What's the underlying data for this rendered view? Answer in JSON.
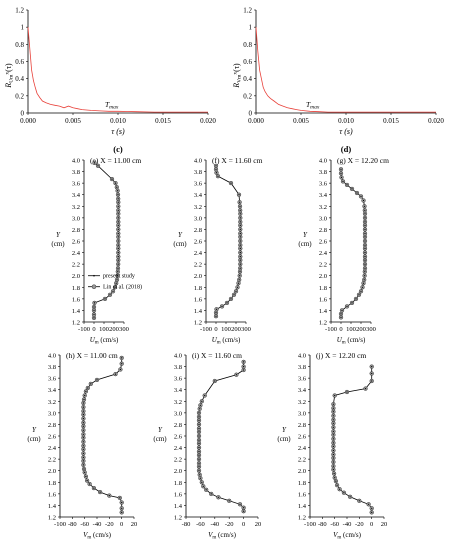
{
  "chart_data": [
    {
      "id": "c",
      "type": "line",
      "panel_label": "(c)",
      "ylabel_main": "R",
      "ylabel_sub": "Um",
      "ylabel_sup": "x",
      "ylabel_tail": "(τ)",
      "xlabel": "τ (s)",
      "xlim": [
        0,
        0.02
      ],
      "ylim": [
        0,
        1.2
      ],
      "xticks": [
        "0.000",
        "0.005",
        "0.010",
        "0.015",
        "0.020"
      ],
      "yticks": [
        "0",
        "0.2",
        "0.4",
        "0.6",
        "0.8",
        "1",
        "1.2"
      ],
      "annotation": "T",
      "annotation_sub": "max",
      "annotation_x": 0.009,
      "line_color": "#e8413a",
      "x": [
        0,
        0.0002,
        0.0004,
        0.0006,
        0.0008,
        0.001,
        0.0013,
        0.0016,
        0.002,
        0.0025,
        0.003,
        0.0035,
        0.004,
        0.0045,
        0.005,
        0.0055,
        0.006,
        0.007,
        0.008,
        0.009,
        0.01,
        0.012,
        0.014,
        0.016,
        0.018,
        0.02
      ],
      "y": [
        1.0,
        0.75,
        0.5,
        0.38,
        0.3,
        0.23,
        0.18,
        0.14,
        0.12,
        0.1,
        0.09,
        0.08,
        0.06,
        0.08,
        0.06,
        0.05,
        0.04,
        0.03,
        0.025,
        0.02,
        0.02,
        0.015,
        0.01,
        0.01,
        0.01,
        0.01
      ]
    },
    {
      "id": "d",
      "type": "line",
      "panel_label": "(d)",
      "ylabel_main": "R",
      "ylabel_sub": "Vm",
      "ylabel_sup": "x",
      "ylabel_tail": "(τ)",
      "xlabel": "τ (s)",
      "xlim": [
        0,
        0.02
      ],
      "ylim": [
        0,
        1.2
      ],
      "xticks": [
        "0.000",
        "0.005",
        "0.010",
        "0.015",
        "0.020"
      ],
      "yticks": [
        "0",
        "0.2",
        "0.4",
        "0.6",
        "0.8",
        "1",
        "1.2"
      ],
      "annotation": "T",
      "annotation_sub": "max",
      "annotation_x": 0.006,
      "line_color": "#e8413a",
      "x": [
        0,
        0.0002,
        0.0004,
        0.0006,
        0.0008,
        0.001,
        0.0013,
        0.0016,
        0.002,
        0.0025,
        0.003,
        0.0035,
        0.004,
        0.0045,
        0.005,
        0.006,
        0.007,
        0.008,
        0.009,
        0.01,
        0.012,
        0.014,
        0.016,
        0.018,
        0.02
      ],
      "y": [
        1.0,
        0.72,
        0.5,
        0.4,
        0.3,
        0.25,
        0.2,
        0.17,
        0.14,
        0.1,
        0.08,
        0.06,
        0.05,
        0.04,
        0.03,
        0.02,
        0.015,
        0.01,
        0.01,
        0.01,
        0.01,
        0.01,
        0.01,
        0.01,
        0.01
      ]
    },
    {
      "id": "e",
      "type": "line",
      "title": "(e) X = 11.00 cm",
      "xlabel_main": "U",
      "xlabel_sub": "m",
      "xlabel_unit": "(cm/s)",
      "ylabel": "Y",
      "ylabel_unit": "(cm)",
      "xlim": [
        -100,
        300
      ],
      "ylim": [
        1.2,
        4.0
      ],
      "xticks": [
        "-100",
        "0",
        "100",
        "200",
        "300"
      ],
      "yticks": [
        "1.2",
        "1.4",
        "1.6",
        "1.8",
        "2.0",
        "2.2",
        "2.4",
        "2.6",
        "2.8",
        "3.0",
        "3.2",
        "3.4",
        "3.6",
        "3.8",
        "4.0"
      ],
      "legend": {
        "present": "present study",
        "lin": "Lin et al. (2018)"
      },
      "series": [
        {
          "x": [
            0,
            0,
            0,
            0,
            5,
            110,
            160,
            190,
            210,
            222,
            230,
            235,
            238,
            240,
            242,
            243,
            243,
            243,
            243,
            243,
            243,
            243,
            243,
            243,
            243,
            243,
            243,
            243,
            243,
            243,
            243,
            242,
            240,
            236,
            228,
            215,
            180,
            40,
            5
          ],
          "y": [
            1.27,
            1.33,
            1.4,
            1.46,
            1.53,
            1.6,
            1.67,
            1.73,
            1.8,
            1.87,
            1.93,
            2.0,
            2.07,
            2.13,
            2.2,
            2.27,
            2.33,
            2.4,
            2.47,
            2.53,
            2.6,
            2.67,
            2.73,
            2.8,
            2.87,
            2.93,
            3.0,
            3.07,
            3.13,
            3.2,
            3.27,
            3.33,
            3.4,
            3.47,
            3.53,
            3.6,
            3.67,
            3.9,
            3.95
          ]
        }
      ]
    },
    {
      "id": "f",
      "type": "line",
      "title": "(f) X = 11.60 cm",
      "xlabel_main": "U",
      "xlabel_sub": "m",
      "xlabel_unit": "(cm/s)",
      "ylabel": "Y",
      "ylabel_unit": "(cm)",
      "xlim": [
        -100,
        300
      ],
      "ylim": [
        1.2,
        4.0
      ],
      "xticks": [
        "-100",
        "0",
        "100",
        "200",
        "300"
      ],
      "yticks": [
        "1.2",
        "1.4",
        "1.6",
        "1.8",
        "2.0",
        "2.2",
        "2.4",
        "2.6",
        "2.8",
        "3.0",
        "3.2",
        "3.4",
        "3.6",
        "3.8",
        "4.0"
      ],
      "series": [
        {
          "x": [
            0,
            0,
            5,
            60,
            110,
            150,
            180,
            200,
            215,
            225,
            232,
            237,
            240,
            242,
            243,
            243,
            243,
            243,
            243,
            243,
            243,
            243,
            243,
            243,
            243,
            243,
            243,
            243,
            242,
            240,
            236,
            230,
            150,
            20,
            5,
            0,
            0
          ],
          "y": [
            1.3,
            1.36,
            1.42,
            1.47,
            1.53,
            1.6,
            1.67,
            1.73,
            1.8,
            1.87,
            1.93,
            2.0,
            2.07,
            2.13,
            2.2,
            2.27,
            2.33,
            2.4,
            2.47,
            2.53,
            2.6,
            2.67,
            2.73,
            2.8,
            2.87,
            2.93,
            3.0,
            3.07,
            3.13,
            3.2,
            3.27,
            3.4,
            3.6,
            3.72,
            3.78,
            3.84,
            3.9
          ]
        }
      ]
    },
    {
      "id": "g",
      "type": "line",
      "title": "(g) X = 12.20 cm",
      "xlabel_main": "U",
      "xlabel_sub": "m",
      "xlabel_unit": "(cm/s)",
      "ylabel": "Y",
      "ylabel_unit": "(cm)",
      "xlim": [
        -100,
        300
      ],
      "ylim": [
        1.2,
        4.0
      ],
      "xticks": [
        "-100",
        "0",
        "100",
        "200",
        "300"
      ],
      "yticks": [
        "1.2",
        "1.4",
        "1.6",
        "1.8",
        "2.0",
        "2.2",
        "2.4",
        "2.6",
        "2.8",
        "3.0",
        "3.2",
        "3.4",
        "3.6",
        "3.8",
        "4.0"
      ],
      "series": [
        {
          "x": [
            0,
            0,
            10,
            60,
            110,
            150,
            180,
            200,
            215,
            225,
            232,
            236,
            238,
            240,
            240,
            240,
            240,
            240,
            240,
            240,
            240,
            240,
            240,
            240,
            240,
            240,
            240,
            240,
            238,
            235,
            225,
            200,
            160,
            110,
            60,
            20,
            5,
            0,
            0
          ],
          "y": [
            1.28,
            1.34,
            1.4,
            1.47,
            1.53,
            1.6,
            1.67,
            1.73,
            1.8,
            1.87,
            1.93,
            2.0,
            2.07,
            2.13,
            2.2,
            2.27,
            2.33,
            2.4,
            2.47,
            2.53,
            2.6,
            2.67,
            2.73,
            2.8,
            2.87,
            2.93,
            3.0,
            3.07,
            3.13,
            3.2,
            3.3,
            3.37,
            3.43,
            3.5,
            3.57,
            3.63,
            3.7,
            3.77,
            3.84
          ]
        }
      ]
    },
    {
      "id": "h",
      "type": "line",
      "title": "(h) X = 11.00 cm",
      "xlabel_main": "V",
      "xlabel_sub": "m",
      "xlabel_unit": "(cm/s)",
      "ylabel": "Y",
      "ylabel_unit": "(cm)",
      "xlim": [
        -100,
        20
      ],
      "ylim": [
        1.2,
        4.0
      ],
      "xticks": [
        "-100",
        "-80",
        "-60",
        "-40",
        "-20",
        "0",
        "20"
      ],
      "yticks": [
        "1.2",
        "1.4",
        "1.6",
        "1.8",
        "2.0",
        "2.2",
        "2.4",
        "2.6",
        "2.8",
        "3.0",
        "3.2",
        "3.4",
        "3.6",
        "3.8",
        "4.0"
      ],
      "series": [
        {
          "x": [
            0,
            0,
            0,
            -3,
            -20,
            -35,
            -45,
            -52,
            -56,
            -58,
            -60,
            -61,
            -62,
            -62,
            -62,
            -62,
            -62,
            -62,
            -62,
            -62,
            -62,
            -62,
            -62,
            -62,
            -62,
            -62,
            -62,
            -62,
            -62,
            -61,
            -60,
            -58,
            -55,
            -50,
            -40,
            -10,
            -2,
            0,
            0
          ],
          "y": [
            1.28,
            1.35,
            1.45,
            1.53,
            1.57,
            1.63,
            1.7,
            1.77,
            1.83,
            1.9,
            1.97,
            2.03,
            2.1,
            2.17,
            2.23,
            2.3,
            2.37,
            2.43,
            2.5,
            2.57,
            2.63,
            2.7,
            2.77,
            2.83,
            2.9,
            2.97,
            3.03,
            3.1,
            3.17,
            3.23,
            3.3,
            3.37,
            3.43,
            3.5,
            3.57,
            3.67,
            3.75,
            3.85,
            3.95
          ]
        }
      ]
    },
    {
      "id": "i",
      "type": "line",
      "title": "(i) X = 11.60 cm",
      "xlabel_main": "V",
      "xlabel_sub": "m",
      "xlabel_unit": "(cm/s)",
      "ylabel": "Y",
      "ylabel_unit": "(cm)",
      "xlim": [
        -80,
        20
      ],
      "ylim": [
        1.2,
        4.0
      ],
      "xticks": [
        "-80",
        "-60",
        "-40",
        "-20",
        "0",
        "20"
      ],
      "yticks": [
        "1.2",
        "1.4",
        "1.6",
        "1.8",
        "2.0",
        "2.2",
        "2.4",
        "2.6",
        "2.8",
        "3.0",
        "3.2",
        "3.4",
        "3.6",
        "3.8",
        "4.0"
      ],
      "series": [
        {
          "x": [
            0,
            0,
            -5,
            -20,
            -35,
            -45,
            -52,
            -56,
            -58,
            -60,
            -61,
            -62,
            -62,
            -62,
            -62,
            -62,
            -62,
            -62,
            -62,
            -62,
            -62,
            -62,
            -62,
            -62,
            -62,
            -62,
            -62,
            -61,
            -60,
            -58,
            -54,
            -40,
            -10,
            0,
            0,
            0
          ],
          "y": [
            1.3,
            1.36,
            1.42,
            1.48,
            1.54,
            1.6,
            1.67,
            1.73,
            1.8,
            1.87,
            1.93,
            2.0,
            2.07,
            2.13,
            2.2,
            2.27,
            2.33,
            2.4,
            2.47,
            2.53,
            2.6,
            2.67,
            2.73,
            2.8,
            2.87,
            2.93,
            3.0,
            3.07,
            3.13,
            3.2,
            3.3,
            3.55,
            3.66,
            3.74,
            3.8,
            3.88
          ]
        }
      ]
    },
    {
      "id": "j",
      "type": "line",
      "title": "(j) X = 12.20 cm",
      "xlabel_main": "V",
      "xlabel_sub": "m",
      "xlabel_unit": "(cm/s)",
      "ylabel": "Y",
      "ylabel_unit": "(cm)",
      "xlim": [
        -100,
        20
      ],
      "ylim": [
        1.2,
        4.0
      ],
      "xticks": [
        "-100",
        "-80",
        "-60",
        "-40",
        "-20",
        "0",
        "20"
      ],
      "yticks": [
        "1.2",
        "1.4",
        "1.6",
        "1.8",
        "2.0",
        "2.2",
        "2.4",
        "2.6",
        "2.8",
        "3.0",
        "3.2",
        "3.4",
        "3.6",
        "3.8",
        "4.0"
      ],
      "series": [
        {
          "x": [
            0,
            0,
            -5,
            -20,
            -35,
            -45,
            -52,
            -56,
            -58,
            -60,
            -61,
            -62,
            -62,
            -62,
            -62,
            -62,
            -62,
            -62,
            -62,
            -62,
            -62,
            -62,
            -62,
            -62,
            -62,
            -62,
            -62,
            -62,
            -62,
            -60,
            -40,
            -10,
            0,
            0,
            0
          ],
          "y": [
            1.28,
            1.35,
            1.42,
            1.48,
            1.55,
            1.62,
            1.68,
            1.75,
            1.82,
            1.88,
            1.95,
            2.02,
            2.08,
            2.15,
            2.22,
            2.28,
            2.35,
            2.42,
            2.48,
            2.55,
            2.62,
            2.68,
            2.75,
            2.82,
            2.88,
            2.95,
            3.02,
            3.08,
            3.15,
            3.3,
            3.36,
            3.42,
            3.55,
            3.68,
            3.8
          ]
        }
      ]
    }
  ]
}
